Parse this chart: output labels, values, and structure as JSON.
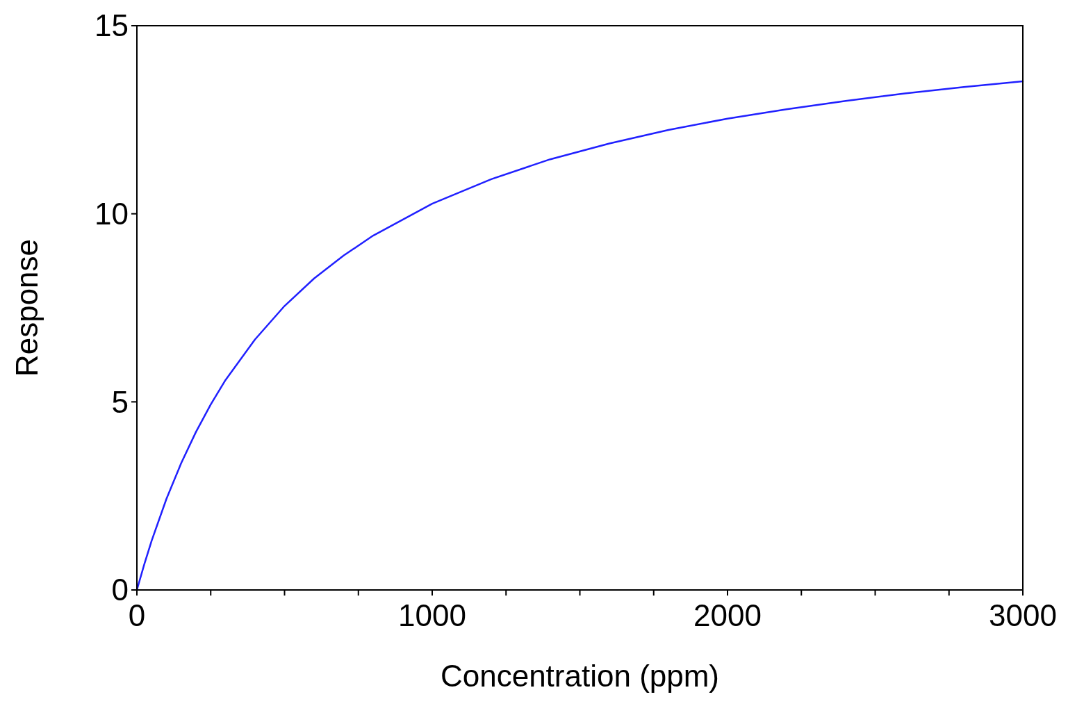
{
  "chart_data": {
    "type": "line",
    "xlabel": "Concentration (ppm)",
    "ylabel": "Response",
    "x": [
      0,
      25,
      50,
      100,
      150,
      200,
      250,
      300,
      400,
      500,
      600,
      700,
      800,
      1000,
      1200,
      1400,
      1600,
      1800,
      2000,
      2200,
      2400,
      2600,
      2800,
      3000
    ],
    "series": [
      {
        "color": "#2020ff",
        "values": [
          0,
          0.68,
          1.31,
          2.42,
          3.37,
          4.2,
          4.93,
          5.58,
          6.66,
          7.55,
          8.28,
          8.89,
          9.42,
          10.27,
          10.92,
          11.45,
          11.87,
          12.23,
          12.53,
          12.78,
          13.0,
          13.2,
          13.37,
          13.52
        ]
      }
    ],
    "xlim": [
      0,
      3000
    ],
    "ylim": [
      0,
      15
    ],
    "xticks": [
      0,
      {
        "value": 250,
        "label": null
      },
      {
        "value": 500,
        "label": null
      },
      {
        "value": 750,
        "label": null
      },
      1000,
      {
        "value": 1250,
        "label": null
      },
      {
        "value": 1500,
        "label": null
      },
      {
        "value": 1750,
        "label": null
      },
      2000,
      {
        "value": 2250,
        "label": null
      },
      {
        "value": 2500,
        "label": null
      },
      {
        "value": 2750,
        "label": null
      },
      3000
    ],
    "yticks": [
      0,
      5,
      10,
      15
    ],
    "grid": false,
    "marker": "none",
    "line_style": "solid"
  }
}
